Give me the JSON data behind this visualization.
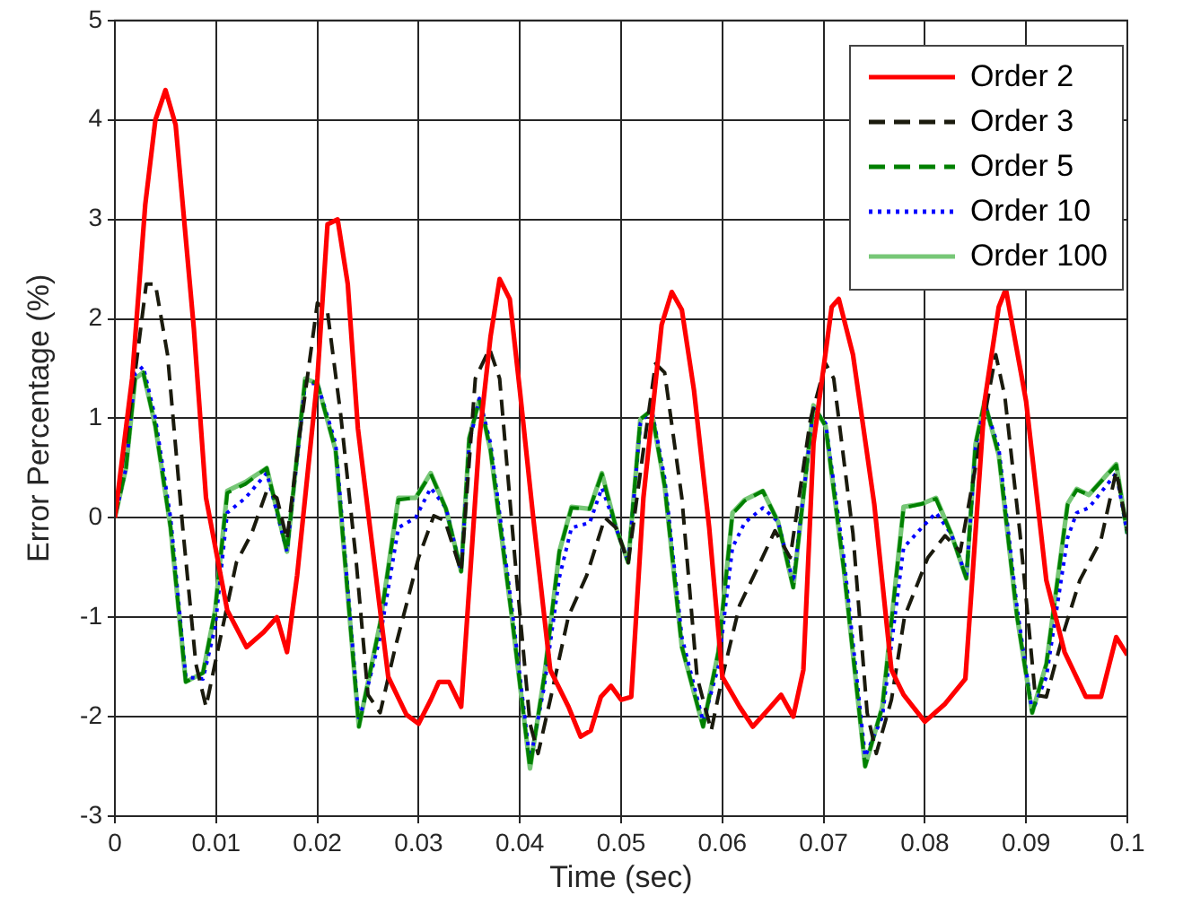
{
  "chart_data": {
    "type": "line",
    "xlabel": "Time (sec)",
    "ylabel": "Error Percentage (%)",
    "xlim": [
      0,
      0.1
    ],
    "xticks": [
      0,
      0.01,
      0.02,
      0.03,
      0.04,
      0.05,
      0.06,
      0.07,
      0.08,
      0.09,
      0.1
    ],
    "ylim": [
      -3,
      5
    ],
    "yticks": [
      -3,
      -2,
      -1,
      0,
      1,
      2,
      3,
      4,
      5
    ],
    "grid": true,
    "legend": "top right",
    "marker": "none",
    "series": [
      {
        "name": "Order 2",
        "color": "#ff0000",
        "line_style": "solid",
        "x": [
          0,
          0.0017,
          0.003,
          0.004,
          0.005,
          0.006,
          0.0078,
          0.009,
          0.0111,
          0.013,
          0.0147,
          0.016,
          0.017,
          0.018,
          0.02,
          0.021,
          0.022,
          0.023,
          0.024,
          0.027,
          0.0288,
          0.03,
          0.0312,
          0.032,
          0.033,
          0.0342,
          0.036,
          0.0371,
          0.038,
          0.039,
          0.04,
          0.0413,
          0.043,
          0.0448,
          0.046,
          0.047,
          0.048,
          0.049,
          0.05,
          0.051,
          0.0522,
          0.054,
          0.055,
          0.056,
          0.0572,
          0.0587,
          0.06,
          0.0617,
          0.063,
          0.0646,
          0.0658,
          0.067,
          0.068,
          0.069,
          0.0708,
          0.0715,
          0.0729,
          0.075,
          0.0767,
          0.0779,
          0.08,
          0.082,
          0.084,
          0.0859,
          0.0873,
          0.088,
          0.09,
          0.092,
          0.0938,
          0.0959,
          0.0974,
          0.0989,
          0.1
        ],
        "values": [
          0,
          1.4,
          3.15,
          4.0,
          4.3,
          3.95,
          1.9,
          0.2,
          -0.93,
          -1.3,
          -1.15,
          -1.0,
          -1.35,
          -0.58,
          1.4,
          2.95,
          3.0,
          2.35,
          0.9,
          -1.6,
          -1.98,
          -2.07,
          -1.83,
          -1.65,
          -1.65,
          -1.9,
          0.8,
          1.82,
          2.4,
          2.2,
          1.28,
          0.02,
          -1.53,
          -1.9,
          -2.2,
          -2.14,
          -1.8,
          -1.69,
          -1.83,
          -1.8,
          0.2,
          1.94,
          2.27,
          2.09,
          1.28,
          -0.1,
          -1.6,
          -1.9,
          -2.1,
          -1.92,
          -1.78,
          -2.0,
          -1.53,
          0.75,
          2.12,
          2.2,
          1.64,
          0.14,
          -1.53,
          -1.78,
          -2.05,
          -1.87,
          -1.62,
          1.17,
          2.12,
          2.3,
          1.17,
          -0.63,
          -1.35,
          -1.8,
          -1.8,
          -1.2,
          -1.38
        ]
      },
      {
        "name": "Order 3",
        "color": "#1a1a0d",
        "line_style": "dashed",
        "x": [
          0,
          0.002,
          0.0031,
          0.004,
          0.0052,
          0.0067,
          0.008,
          0.009,
          0.0105,
          0.012,
          0.0135,
          0.015,
          0.016,
          0.017,
          0.0182,
          0.02,
          0.021,
          0.0223,
          0.0238,
          0.025,
          0.0262,
          0.0277,
          0.03,
          0.0315,
          0.0326,
          0.0342,
          0.0356,
          0.037,
          0.038,
          0.0395,
          0.041,
          0.0418,
          0.043,
          0.0448,
          0.0466,
          0.0484,
          0.0495,
          0.0507,
          0.0522,
          0.0534,
          0.0543,
          0.056,
          0.0575,
          0.0589,
          0.06,
          0.0617,
          0.0634,
          0.0652,
          0.0667,
          0.0687,
          0.0702,
          0.071,
          0.0729,
          0.0743,
          0.0752,
          0.0767,
          0.078,
          0.0803,
          0.082,
          0.0835,
          0.0853,
          0.087,
          0.0879,
          0.0894,
          0.0909,
          0.092,
          0.0938,
          0.0953,
          0.0974,
          0.0989,
          0.1
        ],
        "values": [
          0,
          1.46,
          2.35,
          2.35,
          1.64,
          -0.1,
          -1.47,
          -1.9,
          -1.17,
          -0.45,
          -0.16,
          0.27,
          0.2,
          -0.22,
          0.8,
          2.16,
          2.07,
          1.04,
          -0.4,
          -1.78,
          -1.96,
          -1.3,
          -0.4,
          0.02,
          -0.03,
          -0.54,
          1.4,
          1.7,
          1.4,
          -0.4,
          -2.07,
          -2.37,
          -1.83,
          -0.99,
          -0.58,
          0,
          -0.1,
          -0.45,
          0.68,
          1.55,
          1.46,
          0.2,
          -1.6,
          -2.14,
          -1.6,
          -0.88,
          -0.52,
          -0.13,
          -0.4,
          0.99,
          1.55,
          1.4,
          -0.16,
          -1.96,
          -2.37,
          -1.83,
          -0.99,
          -0.4,
          -0.18,
          -0.34,
          0.68,
          1.64,
          1.22,
          -0.16,
          -1.78,
          -1.8,
          -1.12,
          -0.63,
          -0.22,
          0.47,
          -0.13
        ]
      },
      {
        "name": "Order 5",
        "color": "#008000",
        "line_style": "dashed",
        "x": [
          0,
          0.0011,
          0.002,
          0.0028,
          0.004,
          0.0055,
          0.007,
          0.0087,
          0.0099,
          0.0111,
          0.0129,
          0.015,
          0.017,
          0.0188,
          0.02,
          0.0218,
          0.0241,
          0.0262,
          0.028,
          0.0297,
          0.0312,
          0.0327,
          0.0342,
          0.035,
          0.036,
          0.0371,
          0.0392,
          0.041,
          0.0424,
          0.0439,
          0.0451,
          0.0469,
          0.0481,
          0.0495,
          0.0507,
          0.0519,
          0.053,
          0.0543,
          0.056,
          0.0581,
          0.0596,
          0.061,
          0.0622,
          0.064,
          0.0655,
          0.067,
          0.069,
          0.0702,
          0.072,
          0.0741,
          0.0758,
          0.0779,
          0.0797,
          0.0811,
          0.0826,
          0.0841,
          0.085,
          0.0859,
          0.0873,
          0.0891,
          0.0906,
          0.092,
          0.0941,
          0.095,
          0.0962,
          0.0989,
          0.1
        ],
        "values": [
          0,
          0.5,
          1.4,
          1.46,
          0.92,
          -0.1,
          -1.65,
          -1.56,
          -0.93,
          0.25,
          0.34,
          0.5,
          -0.34,
          1.4,
          1.35,
          0.68,
          -2.1,
          -1.06,
          0.18,
          0.2,
          0.44,
          0.09,
          -0.54,
          0.8,
          1.19,
          0.68,
          -0.99,
          -2.52,
          -1.6,
          -0.34,
          0.1,
          0.09,
          0.44,
          -0.1,
          -0.45,
          0.99,
          1.08,
          0.32,
          -1.3,
          -2.1,
          -1.35,
          0.04,
          0.17,
          0.27,
          -0.04,
          -0.7,
          1.13,
          0.92,
          -0.52,
          -2.5,
          -1.9,
          0.1,
          0.14,
          0.19,
          -0.16,
          -0.61,
          0.74,
          1.17,
          0.63,
          -0.99,
          -1.96,
          -1.47,
          0.13,
          0.28,
          0.23,
          0.53,
          -0.16
        ]
      },
      {
        "name": "Order 10",
        "color": "#0000ff",
        "line_style": "dotted",
        "x": [
          0,
          0.0011,
          0.002,
          0.0028,
          0.004,
          0.0055,
          0.007,
          0.0087,
          0.0099,
          0.0111,
          0.0129,
          0.015,
          0.017,
          0.0188,
          0.02,
          0.0218,
          0.0241,
          0.0262,
          0.028,
          0.0297,
          0.0312,
          0.0327,
          0.0342,
          0.035,
          0.036,
          0.0371,
          0.0392,
          0.041,
          0.0424,
          0.0439,
          0.0451,
          0.0469,
          0.0481,
          0.0495,
          0.0507,
          0.0519,
          0.053,
          0.0543,
          0.056,
          0.0581,
          0.0596,
          0.061,
          0.0622,
          0.064,
          0.0655,
          0.067,
          0.069,
          0.0702,
          0.072,
          0.0741,
          0.0758,
          0.0779,
          0.0797,
          0.0811,
          0.0826,
          0.0841,
          0.085,
          0.0859,
          0.0873,
          0.0891,
          0.0906,
          0.092,
          0.0941,
          0.095,
          0.0962,
          0.0989,
          0.1
        ],
        "values": [
          0,
          0.5,
          1.45,
          1.52,
          1.0,
          0,
          -1.6,
          -1.62,
          -1.1,
          0.05,
          0.2,
          0.45,
          -0.34,
          1.35,
          1.35,
          0.75,
          -2.05,
          -1.2,
          -0.1,
          0,
          0.3,
          0.1,
          -0.54,
          0.75,
          1.2,
          0.75,
          -0.9,
          -2.45,
          -1.7,
          -0.6,
          -0.1,
          -0.05,
          0.3,
          -0.1,
          -0.45,
          0.95,
          1.1,
          0.4,
          -1.2,
          -2.05,
          -1.5,
          -0.3,
          -0.05,
          0.1,
          -0.04,
          -0.65,
          1.1,
          0.95,
          -0.4,
          -2.4,
          -2.0,
          -0.3,
          -0.1,
          0.05,
          -0.16,
          -0.6,
          0.7,
          1.15,
          0.7,
          -0.9,
          -1.95,
          -1.6,
          -0.2,
          0.05,
          0.1,
          0.45,
          -0.16
        ]
      },
      {
        "name": "Order 100",
        "color": "#77c777",
        "line_style": "solid",
        "x": [
          0,
          0.0011,
          0.002,
          0.0028,
          0.004,
          0.0055,
          0.007,
          0.0087,
          0.0099,
          0.0111,
          0.0129,
          0.015,
          0.017,
          0.0188,
          0.02,
          0.0218,
          0.0241,
          0.0262,
          0.028,
          0.0297,
          0.0312,
          0.0327,
          0.0342,
          0.035,
          0.036,
          0.0371,
          0.0392,
          0.041,
          0.0424,
          0.0439,
          0.0451,
          0.0469,
          0.0481,
          0.0495,
          0.0507,
          0.0519,
          0.053,
          0.0543,
          0.056,
          0.0581,
          0.0596,
          0.061,
          0.0622,
          0.064,
          0.0655,
          0.067,
          0.069,
          0.0702,
          0.072,
          0.0741,
          0.0758,
          0.0779,
          0.0797,
          0.0811,
          0.0826,
          0.0841,
          0.085,
          0.0859,
          0.0873,
          0.0891,
          0.0906,
          0.092,
          0.0941,
          0.095,
          0.0962,
          0.0989,
          0.1
        ],
        "values": [
          0,
          0.5,
          1.4,
          1.46,
          0.92,
          -0.1,
          -1.65,
          -1.56,
          -0.93,
          0.27,
          0.36,
          0.5,
          -0.34,
          1.4,
          1.35,
          0.68,
          -2.1,
          -1.06,
          0.2,
          0.2,
          0.45,
          0.09,
          -0.54,
          0.8,
          1.19,
          0.68,
          -0.99,
          -2.52,
          -1.6,
          -0.34,
          0.11,
          0.09,
          0.45,
          -0.1,
          -0.45,
          0.99,
          1.08,
          0.32,
          -1.3,
          -2.1,
          -1.35,
          0.05,
          0.18,
          0.27,
          -0.04,
          -0.7,
          1.13,
          0.92,
          -0.52,
          -2.5,
          -1.9,
          0.11,
          0.14,
          0.2,
          -0.16,
          -0.61,
          0.74,
          1.17,
          0.63,
          -0.99,
          -1.96,
          -1.47,
          0.14,
          0.29,
          0.23,
          0.54,
          -0.16
        ]
      }
    ]
  }
}
